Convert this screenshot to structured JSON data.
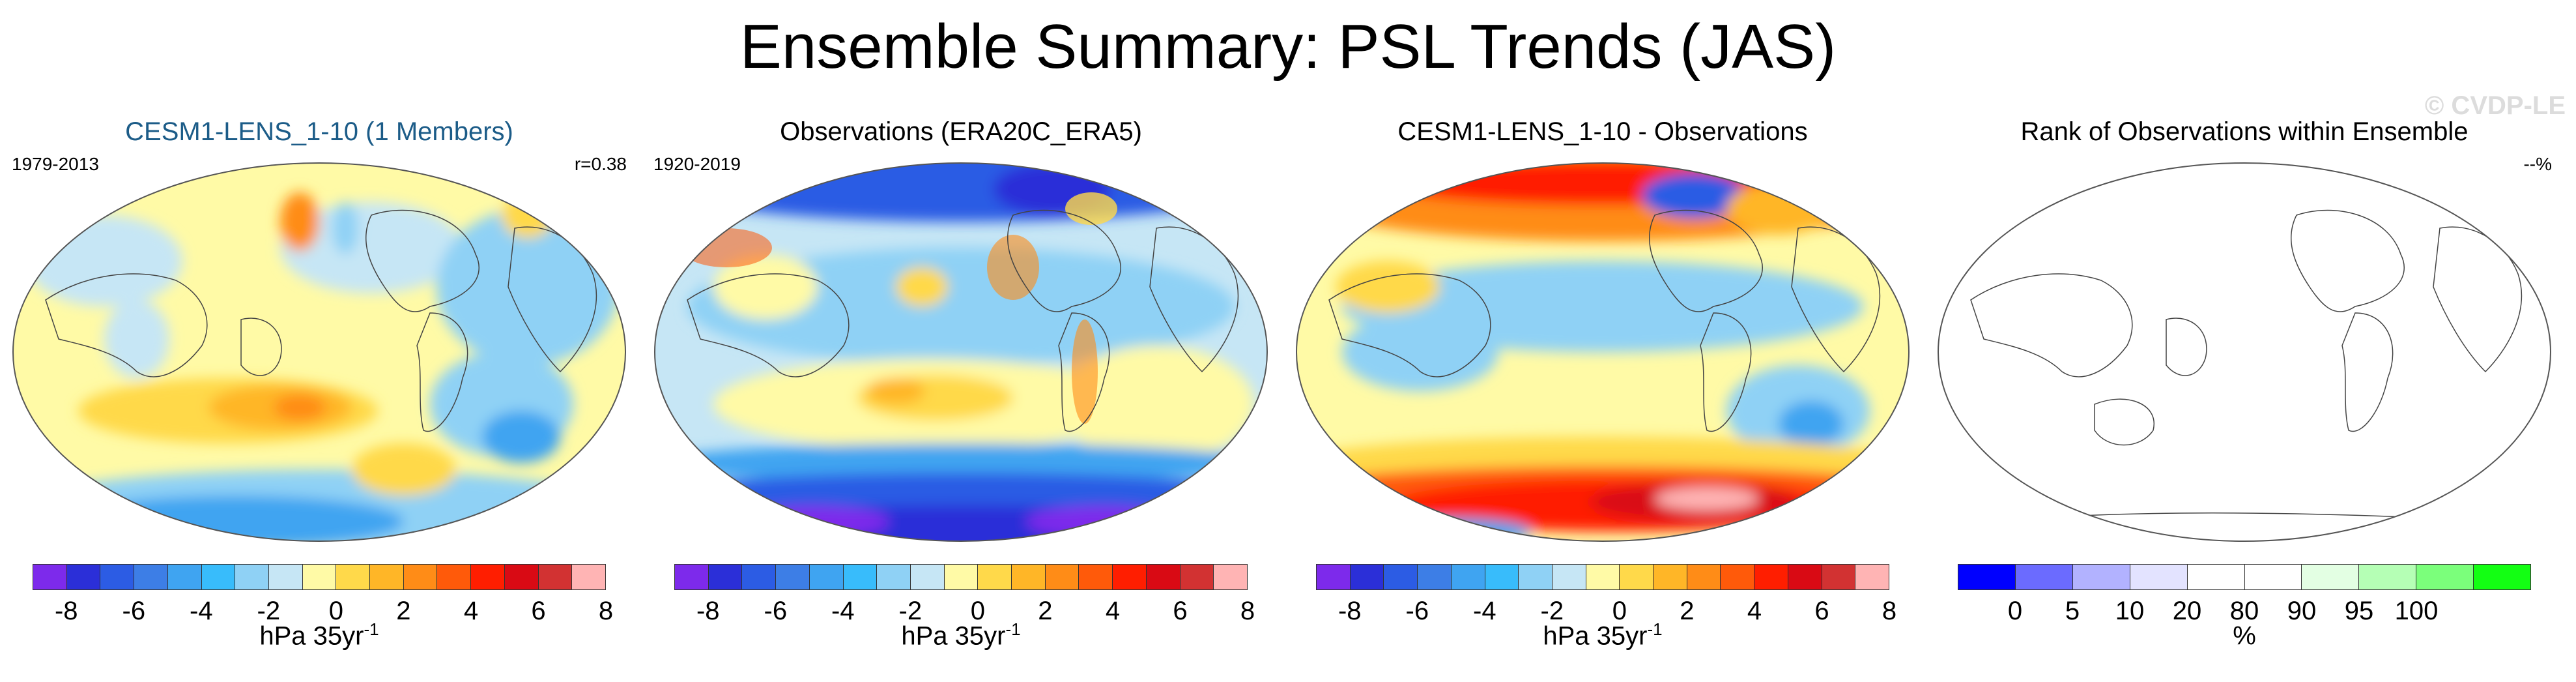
{
  "title": "Ensemble Summary: PSL Trends (JAS)",
  "watermark": "© CVDP-LE",
  "colors": {
    "diverging": [
      "#7d2aeb",
      "#2b2fd8",
      "#2c5ce4",
      "#3d7ee6",
      "#3fa4f1",
      "#38bcfb",
      "#8fd1f5",
      "#c6e6f5",
      "#fffaa6",
      "#ffd94a",
      "#ffb627",
      "#ff8c17",
      "#ff5a0a",
      "#ff1e00",
      "#d90a14",
      "#d23232",
      "#ffb4b4"
    ],
    "rank": [
      "#0000ff",
      "#6b6bff",
      "#b2b2ff",
      "#e3e3ff",
      "#ffffff",
      "#ffffff",
      "#e3ffe3",
      "#b5ffb5",
      "#7bff7b",
      "#13ff13"
    ],
    "title_blue": "#1c5c88",
    "pos_blob": "#ff9e16",
    "neg_blob": "#2e7ef0",
    "strong_pos": "#ff2a00",
    "strong_neg": "#4d2ae0"
  },
  "panels": [
    {
      "title": "CESM1-LENS_1-10 (1 Members)",
      "left_label": "1979-2013",
      "right_label": "r=0.38",
      "colorbar_ticks": [
        "-8",
        "-6",
        "-4",
        "-2",
        "0",
        "2",
        "4",
        "6",
        "8"
      ],
      "units_main": "hPa 35yr",
      "units_sup": "-1"
    },
    {
      "title": "Observations (ERA20C_ERA5)",
      "left_label": "1920-2019",
      "right_label": "",
      "colorbar_ticks": [
        "-8",
        "-6",
        "-4",
        "-2",
        "0",
        "2",
        "4",
        "6",
        "8"
      ],
      "units_main": "hPa 35yr",
      "units_sup": "-1"
    },
    {
      "title": "CESM1-LENS_1-10 - Observations",
      "left_label": "",
      "right_label": "",
      "colorbar_ticks": [
        "-8",
        "-6",
        "-4",
        "-2",
        "0",
        "2",
        "4",
        "6",
        "8"
      ],
      "units_main": "hPa 35yr",
      "units_sup": "-1"
    },
    {
      "title": "Rank of Observations within Ensemble",
      "left_label": "",
      "right_label": "--%",
      "colorbar_ticks": [
        "0",
        "5",
        "10",
        "20",
        "80",
        "90",
        "95",
        "100"
      ],
      "units_main": "%",
      "units_sup": ""
    }
  ],
  "chart_data": [
    {
      "type": "heatmap",
      "title": "CESM1-LENS_1-10 (1 Members)",
      "period": "1979-2013",
      "stat": "r=0.38",
      "colorbar_levels": [
        -8,
        -7,
        -6,
        -5,
        -4,
        -3,
        -2,
        -1,
        0,
        1,
        2,
        3,
        4,
        5,
        6,
        7,
        8
      ],
      "units": "hPa 35yr-1"
    },
    {
      "type": "heatmap",
      "title": "Observations (ERA20C_ERA5)",
      "period": "1920-2019",
      "colorbar_levels": [
        -8,
        -7,
        -6,
        -5,
        -4,
        -3,
        -2,
        -1,
        0,
        1,
        2,
        3,
        4,
        5,
        6,
        7,
        8
      ],
      "units": "hPa 35yr-1"
    },
    {
      "type": "heatmap",
      "title": "CESM1-LENS_1-10 - Observations",
      "colorbar_levels": [
        -8,
        -7,
        -6,
        -5,
        -4,
        -3,
        -2,
        -1,
        0,
        1,
        2,
        3,
        4,
        5,
        6,
        7,
        8
      ],
      "units": "hPa 35yr-1"
    },
    {
      "type": "heatmap",
      "title": "Rank of Observations within Ensemble",
      "stat": "--%",
      "colorbar_levels": [
        0,
        5,
        10,
        20,
        80,
        90,
        95,
        100
      ],
      "units": "%"
    }
  ]
}
